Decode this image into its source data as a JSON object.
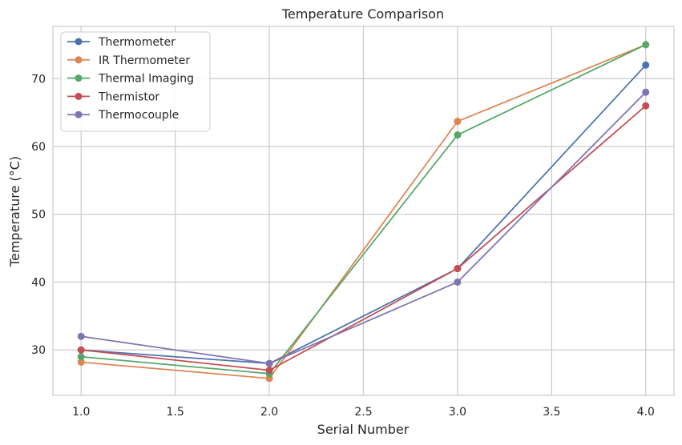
{
  "chart_data": {
    "type": "line",
    "title": "Temperature Comparison",
    "xlabel": "Serial Number",
    "ylabel": "Temperature (°C)",
    "x": [
      1.0,
      2.0,
      3.0,
      4.0
    ],
    "xlim": [
      0.85,
      4.15
    ],
    "ylim": [
      23.3,
      77.7
    ],
    "xticks": [
      1.0,
      1.5,
      2.0,
      2.5,
      3.0,
      3.5,
      4.0
    ],
    "xtick_labels": [
      "1.0",
      "1.5",
      "2.0",
      "2.5",
      "3.0",
      "3.5",
      "4.0"
    ],
    "yticks": [
      30,
      40,
      50,
      60,
      70
    ],
    "ytick_labels": [
      "30",
      "40",
      "50",
      "60",
      "70"
    ],
    "grid": true,
    "legend_position": "top-left",
    "series": [
      {
        "name": "Thermometer",
        "color": "#4c72b0",
        "values": [
          30.0,
          28.0,
          42.0,
          72.0
        ]
      },
      {
        "name": "IR Thermometer",
        "color": "#dd8452",
        "values": [
          28.2,
          25.8,
          63.7,
          75.0
        ]
      },
      {
        "name": "Thermal Imaging",
        "color": "#55a868",
        "values": [
          29.0,
          26.5,
          61.7,
          75.0
        ]
      },
      {
        "name": "Thermistor",
        "color": "#c44e52",
        "values": [
          30.0,
          27.0,
          42.0,
          66.0
        ]
      },
      {
        "name": "Thermocouple",
        "color": "#8172b3",
        "values": [
          32.0,
          28.0,
          40.0,
          68.0
        ]
      }
    ]
  }
}
